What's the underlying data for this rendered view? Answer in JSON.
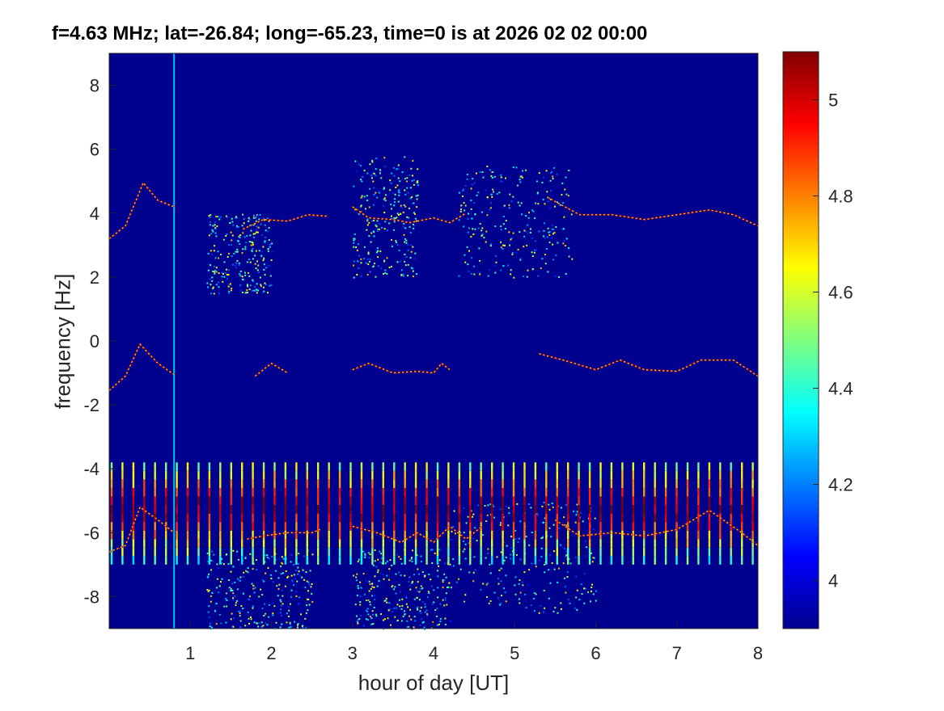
{
  "chart_data": {
    "type": "heatmap",
    "title": "f=4.63 MHz;  lat=-26.84; long=-65.23, time=0 is at 2026 02 02 00:00",
    "xlabel": "hour of day [UT]",
    "ylabel": "frequency [Hz]",
    "xlim": [
      0,
      8
    ],
    "ylim": [
      -9,
      9
    ],
    "x_ticks": [
      "1",
      "2",
      "3",
      "4",
      "5",
      "6",
      "7",
      "8"
    ],
    "y_ticks": [
      "8",
      "6",
      "4",
      "2",
      "0",
      "-2",
      "-4",
      "-6",
      "-8"
    ],
    "colorbar": {
      "colormap": "jet",
      "range": [
        3.9,
        5.1
      ],
      "ticks": [
        "5",
        "4.8",
        "4.6",
        "4.4",
        "4.2",
        "4"
      ]
    },
    "background_value": 3.9,
    "traces": [
      {
        "points": [
          [
            0.0,
            3.2
          ],
          [
            0.2,
            3.6
          ],
          [
            0.42,
            4.95
          ],
          [
            0.6,
            4.4
          ],
          [
            0.8,
            4.2
          ]
        ]
      },
      {
        "points": [
          [
            1.65,
            3.5
          ],
          [
            1.9,
            3.8
          ],
          [
            2.2,
            3.75
          ],
          [
            2.45,
            3.95
          ],
          [
            2.7,
            3.9
          ]
        ]
      },
      {
        "points": [
          [
            3.0,
            4.2
          ],
          [
            3.2,
            3.85
          ],
          [
            3.5,
            3.8
          ],
          [
            3.7,
            3.7
          ],
          [
            4.0,
            3.85
          ],
          [
            4.2,
            3.7
          ],
          [
            4.4,
            4.0
          ]
        ]
      },
      {
        "points": [
          [
            5.4,
            4.5
          ],
          [
            5.8,
            3.95
          ],
          [
            6.2,
            3.95
          ],
          [
            6.6,
            3.8
          ],
          [
            7.0,
            3.95
          ],
          [
            7.4,
            4.1
          ],
          [
            7.7,
            3.95
          ],
          [
            8.0,
            3.6
          ]
        ]
      },
      {
        "points": [
          [
            0.0,
            -1.55
          ],
          [
            0.2,
            -1.1
          ],
          [
            0.38,
            -0.1
          ],
          [
            0.6,
            -0.7
          ],
          [
            0.8,
            -1.05
          ]
        ]
      },
      {
        "points": [
          [
            1.8,
            -1.1
          ],
          [
            2.0,
            -0.7
          ],
          [
            2.2,
            -1.0
          ]
        ]
      },
      {
        "points": [
          [
            3.0,
            -0.9
          ],
          [
            3.2,
            -0.7
          ],
          [
            3.5,
            -1.0
          ],
          [
            3.8,
            -0.95
          ],
          [
            4.0,
            -1.0
          ],
          [
            4.1,
            -0.7
          ],
          [
            4.2,
            -0.9
          ]
        ]
      },
      {
        "points": [
          [
            5.3,
            -0.4
          ],
          [
            5.6,
            -0.6
          ],
          [
            6.0,
            -0.9
          ],
          [
            6.3,
            -0.6
          ],
          [
            6.6,
            -0.9
          ],
          [
            7.0,
            -0.95
          ],
          [
            7.3,
            -0.6
          ],
          [
            7.7,
            -0.6
          ],
          [
            8.0,
            -1.1
          ]
        ]
      },
      {
        "points": [
          [
            0.0,
            -6.6
          ],
          [
            0.2,
            -6.4
          ],
          [
            0.38,
            -5.2
          ],
          [
            0.6,
            -5.6
          ],
          [
            0.8,
            -6.0
          ]
        ]
      },
      {
        "points": [
          [
            1.7,
            -6.2
          ],
          [
            1.9,
            -6.1
          ],
          [
            2.2,
            -6.0
          ],
          [
            2.5,
            -6.0
          ],
          [
            2.6,
            -5.9
          ]
        ]
      },
      {
        "points": [
          [
            3.0,
            -5.8
          ],
          [
            3.3,
            -6.0
          ],
          [
            3.6,
            -6.3
          ],
          [
            3.8,
            -6.0
          ],
          [
            4.0,
            -6.3
          ],
          [
            4.2,
            -5.8
          ],
          [
            4.4,
            -6.2
          ],
          [
            4.6,
            -5.8
          ]
        ]
      },
      {
        "points": [
          [
            5.5,
            -5.6
          ],
          [
            5.8,
            -6.1
          ],
          [
            6.2,
            -6.0
          ],
          [
            6.6,
            -6.1
          ],
          [
            7.0,
            -5.9
          ],
          [
            7.4,
            -5.3
          ],
          [
            7.8,
            -6.0
          ],
          [
            8.0,
            -6.4
          ]
        ]
      }
    ],
    "clouds": [
      {
        "x": [
          3.0,
          3.8
        ],
        "y": [
          2.0,
          5.8
        ]
      },
      {
        "x": [
          4.3,
          5.7
        ],
        "y": [
          2.0,
          5.5
        ]
      },
      {
        "x": [
          1.2,
          2.0
        ],
        "y": [
          1.5,
          4.0
        ]
      },
      {
        "x": [
          4.2,
          6.0
        ],
        "y": [
          -8.5,
          -5.0
        ]
      },
      {
        "x": [
          3.0,
          4.2
        ],
        "y": [
          -9.0,
          -6.5
        ]
      },
      {
        "x": [
          1.2,
          2.5
        ],
        "y": [
          -9.0,
          -6.5
        ]
      }
    ],
    "pulse_band": {
      "x_start": 0.0,
      "x_end": 8.0,
      "spacing": 0.134,
      "y": [
        -7.0,
        -3.8
      ]
    },
    "vertical_lines": [
      0.8
    ]
  }
}
